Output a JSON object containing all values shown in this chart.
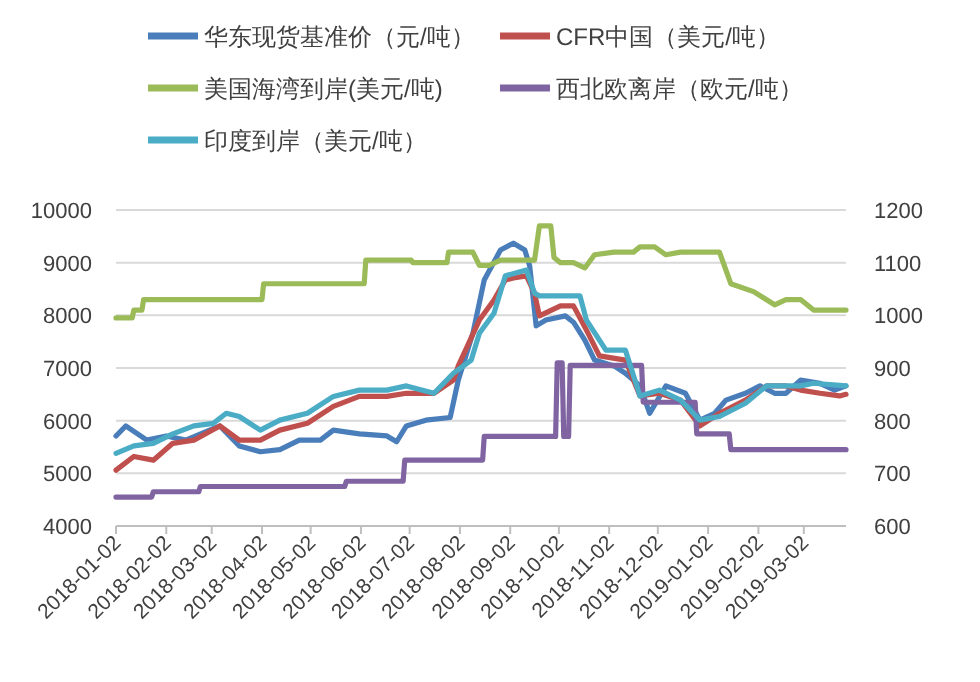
{
  "chart_data": {
    "type": "line",
    "xlim": [
      "2018-01-02",
      "2019-03-28"
    ],
    "xticks": [
      "2018-01-02",
      "2018-02-02",
      "2018-03-02",
      "2018-04-02",
      "2018-05-02",
      "2018-06-02",
      "2018-07-02",
      "2018-08-02",
      "2018-09-02",
      "2018-10-02",
      "2018-11-02",
      "2018-12-02",
      "2019-01-02",
      "2019-02-02",
      "2019-03-02"
    ],
    "ylim": [
      4000,
      10000
    ],
    "yticks": [
      4000,
      5000,
      6000,
      7000,
      8000,
      9000,
      10000
    ],
    "y2lim": [
      600,
      1200
    ],
    "y2ticks": [
      600,
      700,
      800,
      900,
      1000,
      1100,
      1200
    ],
    "grid": "y",
    "legend": "top",
    "series": [
      {
        "name": "华东现货基准价（元/吨）",
        "color": "#4a7ebb",
        "x": [
          "2018-01-02",
          "2018-01-08",
          "2018-01-21",
          "2018-02-02",
          "2018-02-14",
          "2018-03-07",
          "2018-03-19",
          "2018-04-01",
          "2018-04-13",
          "2018-04-25",
          "2018-05-08",
          "2018-05-16",
          "2018-06-01",
          "2018-06-18",
          "2018-06-24",
          "2018-06-30",
          "2018-07-12",
          "2018-07-27",
          "2018-08-01",
          "2018-08-10",
          "2018-08-17",
          "2018-08-27",
          "2018-09-04",
          "2018-09-11",
          "2018-09-14",
          "2018-09-18",
          "2018-09-24",
          "2018-10-06",
          "2018-10-11",
          "2018-10-18",
          "2018-10-24",
          "2018-11-05",
          "2018-11-12",
          "2018-11-21",
          "2018-11-27",
          "2018-12-07",
          "2018-12-19",
          "2018-12-28",
          "2019-01-06",
          "2019-01-13",
          "2019-01-25",
          "2019-02-03",
          "2019-02-12",
          "2019-02-19",
          "2019-02-28",
          "2019-03-12",
          "2019-03-21",
          "2019-03-28"
        ],
        "values": [
          5710,
          5900,
          5630,
          5710,
          5630,
          5900,
          5520,
          5410,
          5450,
          5630,
          5630,
          5820,
          5750,
          5710,
          5600,
          5900,
          6010,
          6060,
          6770,
          7660,
          8670,
          9240,
          9370,
          9240,
          8940,
          7800,
          7910,
          7990,
          7870,
          7530,
          7150,
          7040,
          6900,
          6660,
          6140,
          6660,
          6520,
          6010,
          6140,
          6390,
          6520,
          6660,
          6520,
          6520,
          6770,
          6710,
          6580,
          6660
        ]
      },
      {
        "name": "CFR中国（美元/吨）",
        "color": "#c0504d",
        "x": [
          "2018-01-02",
          "2018-01-13",
          "2018-01-25",
          "2018-02-06",
          "2018-02-19",
          "2018-03-07",
          "2018-03-19",
          "2018-04-01",
          "2018-04-13",
          "2018-04-30",
          "2018-05-16",
          "2018-06-01",
          "2018-06-18",
          "2018-06-30",
          "2018-07-17",
          "2018-07-29",
          "2018-08-01",
          "2018-08-14",
          "2018-08-23",
          "2018-08-30",
          "2018-09-04",
          "2018-09-12",
          "2018-09-17",
          "2018-09-20",
          "2018-10-03",
          "2018-10-11",
          "2018-10-19",
          "2018-10-27",
          "2018-11-12",
          "2018-11-21",
          "2018-12-03",
          "2018-12-16",
          "2018-12-28",
          "2019-01-09",
          "2019-01-25",
          "2019-02-07",
          "2019-02-19",
          "2019-02-28",
          "2019-03-12",
          "2019-03-24",
          "2019-03-28"
        ],
        "values": [
          5060,
          5320,
          5250,
          5570,
          5630,
          5900,
          5630,
          5630,
          5820,
          5950,
          6270,
          6460,
          6460,
          6520,
          6520,
          6770,
          7040,
          7910,
          8290,
          8670,
          8710,
          8750,
          8420,
          7990,
          8180,
          8180,
          7720,
          7230,
          7150,
          6470,
          6520,
          6390,
          5900,
          6140,
          6390,
          6660,
          6660,
          6580,
          6520,
          6470,
          6500
        ]
      },
      {
        "name": "美国海湾到岸(美元/吨)",
        "color": "#9bbb59",
        "axis": "y2",
        "x": [
          "2018-01-02",
          "2018-01-12",
          "2018-01-13",
          "2018-01-18",
          "2018-01-19",
          "2018-04-02",
          "2018-04-03",
          "2018-06-04",
          "2018-06-05",
          "2018-07-03",
          "2018-07-04",
          "2018-07-25",
          "2018-07-26",
          "2018-08-10",
          "2018-08-14",
          "2018-08-20",
          "2018-08-27",
          "2018-09-17",
          "2018-09-20",
          "2018-09-27",
          "2018-09-29",
          "2018-10-03",
          "2018-10-11",
          "2018-10-18",
          "2018-10-24",
          "2018-11-05",
          "2018-11-17",
          "2018-11-21",
          "2018-11-30",
          "2018-12-07",
          "2018-12-16",
          "2019-01-09",
          "2019-01-16",
          "2019-01-30",
          "2019-02-12",
          "2019-02-19",
          "2019-02-28",
          "2019-03-08",
          "2019-03-28"
        ],
        "values": [
          995,
          995,
          1010,
          1010,
          1030,
          1030,
          1060,
          1060,
          1105,
          1105,
          1100,
          1100,
          1120,
          1120,
          1095,
          1095,
          1105,
          1105,
          1170,
          1170,
          1110,
          1100,
          1100,
          1090,
          1115,
          1120,
          1120,
          1130,
          1130,
          1115,
          1120,
          1120,
          1060,
          1045,
          1020,
          1030,
          1030,
          1010,
          1010
        ]
      },
      {
        "name": "西北欧离岸（欧元/吨）",
        "color": "#8064a2",
        "axis": "y2",
        "x": [
          "2018-01-02",
          "2018-01-24",
          "2018-01-25",
          "2018-02-22",
          "2018-02-23",
          "2018-05-23",
          "2018-05-24",
          "2018-06-28",
          "2018-06-29",
          "2018-08-16",
          "2018-08-17",
          "2018-09-30",
          "2018-10-01",
          "2018-10-04",
          "2018-10-05",
          "2018-10-08",
          "2018-10-09",
          "2018-11-22",
          "2018-11-23",
          "2018-12-25",
          "2018-12-26",
          "2019-01-15",
          "2019-01-16",
          "2019-03-28"
        ],
        "values": [
          655,
          655,
          665,
          665,
          675,
          675,
          685,
          685,
          725,
          725,
          770,
          770,
          910,
          910,
          770,
          770,
          905,
          905,
          835,
          835,
          775,
          775,
          745,
          745
        ]
      },
      {
        "name": "印度到岸（美元/吨）",
        "color": "#4bacc6",
        "x": [
          "2018-01-02",
          "2018-01-13",
          "2018-01-25",
          "2018-02-06",
          "2018-02-19",
          "2018-03-03",
          "2018-03-11",
          "2018-03-19",
          "2018-04-01",
          "2018-04-13",
          "2018-04-30",
          "2018-05-16",
          "2018-06-01",
          "2018-06-18",
          "2018-06-30",
          "2018-07-17",
          "2018-07-29",
          "2018-08-09",
          "2018-08-14",
          "2018-08-23",
          "2018-08-30",
          "2018-09-12",
          "2018-09-17",
          "2018-09-20",
          "2018-10-15",
          "2018-10-19",
          "2018-10-31",
          "2018-11-12",
          "2018-11-21",
          "2018-12-03",
          "2018-12-16",
          "2018-12-28",
          "2019-01-09",
          "2019-01-25",
          "2019-02-07",
          "2019-02-19",
          "2019-02-28",
          "2019-03-08",
          "2019-03-28"
        ],
        "values": [
          5380,
          5520,
          5570,
          5750,
          5900,
          5950,
          6140,
          6080,
          5820,
          6010,
          6140,
          6460,
          6580,
          6580,
          6660,
          6520,
          6900,
          7150,
          7660,
          8040,
          8750,
          8860,
          8420,
          8370,
          8370,
          7910,
          7340,
          7340,
          6470,
          6580,
          6390,
          6010,
          6080,
          6330,
          6660,
          6660,
          6660,
          6710,
          6660
        ]
      }
    ]
  }
}
